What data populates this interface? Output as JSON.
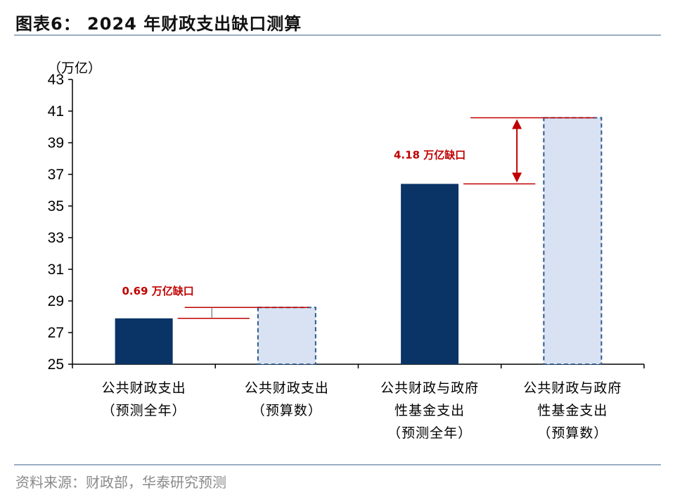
{
  "figure": {
    "title": "图表6： 2024 年财政支出缺口测算",
    "source": "资料来源：财政部，华泰研究预测"
  },
  "chart_data": {
    "type": "bar",
    "unit_label": "（万亿）",
    "ylim": [
      25,
      43
    ],
    "yticks": [
      25,
      27,
      29,
      31,
      33,
      35,
      37,
      39,
      41,
      43
    ],
    "categories": [
      [
        "公共财政支出",
        "（预测全年）"
      ],
      [
        "公共财政支出",
        "（预算数）"
      ],
      [
        "公共财政与政府",
        "性基金支出",
        "（预测全年）"
      ],
      [
        "公共财政与政府",
        "性基金支出",
        "（预算数）"
      ]
    ],
    "values": [
      27.9,
      28.59,
      36.4,
      40.58
    ],
    "bar_styles": [
      "solid",
      "dashed",
      "solid",
      "dashed"
    ],
    "colors": {
      "solid": "#0a3366",
      "dashed_fill": "#d9e2f2",
      "dashed_stroke": "#2f5a8c",
      "annotation": "#c00000"
    },
    "annotations": [
      {
        "text": "0.69 万亿缺口",
        "from_value": 27.9,
        "to_value": 28.59,
        "between": [
          0,
          1
        ]
      },
      {
        "text": "4.18 万亿缺口",
        "from_value": 36.4,
        "to_value": 40.58,
        "between": [
          2,
          3
        ]
      }
    ],
    "grid": false,
    "legend": "none"
  }
}
